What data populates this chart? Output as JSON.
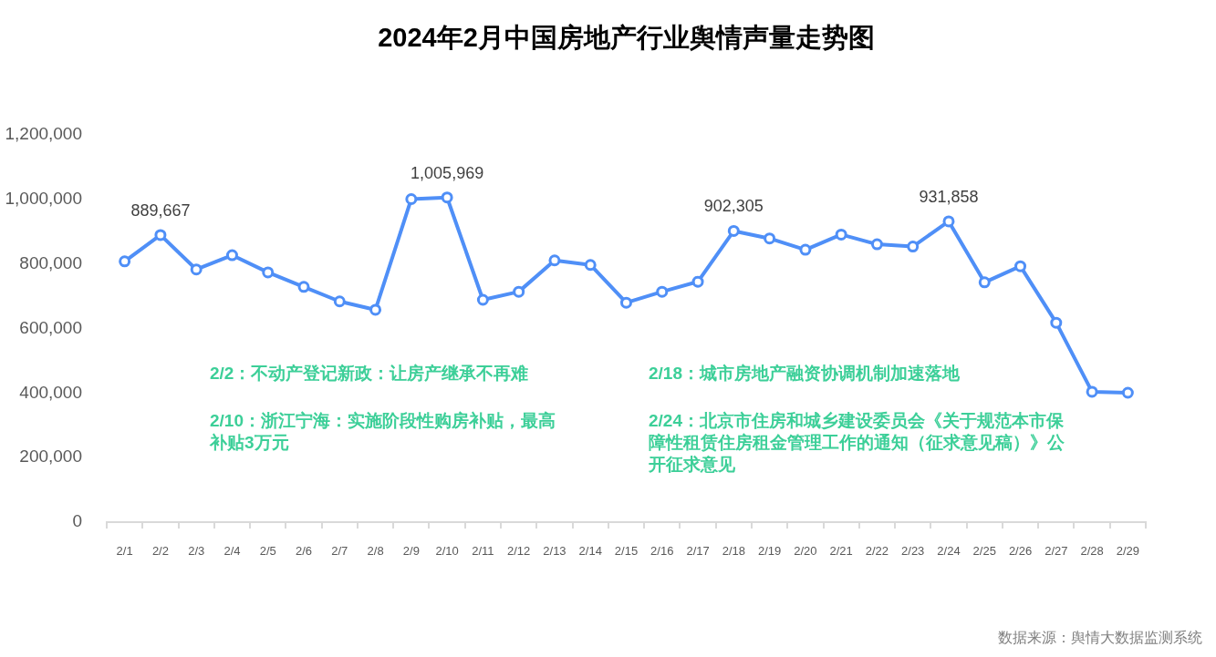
{
  "chart_data": {
    "type": "line",
    "title": "2024年2月中国房地产行业舆情声量走势图",
    "categories": [
      "2/1",
      "2/2",
      "2/3",
      "2/4",
      "2/5",
      "2/6",
      "2/7",
      "2/8",
      "2/9",
      "2/10",
      "2/11",
      "2/12",
      "2/13",
      "2/14",
      "2/15",
      "2/16",
      "2/17",
      "2/18",
      "2/19",
      "2/20",
      "2/21",
      "2/22",
      "2/23",
      "2/24",
      "2/25",
      "2/26",
      "2/27",
      "2/28",
      "2/29"
    ],
    "series": [
      {
        "color": "#4f8ff7",
        "values": [
          808000,
          889667,
          783000,
          827000,
          774000,
          729000,
          684000,
          658000,
          1001000,
          1005969,
          689000,
          714000,
          811000,
          797000,
          680000,
          714000,
          745000,
          902305,
          879000,
          844000,
          891000,
          861000,
          854000,
          931858,
          743000,
          793000,
          618000,
          404000,
          401000
        ],
        "value_labels": [
          null,
          "889,667",
          null,
          null,
          null,
          null,
          null,
          null,
          null,
          "1,005,969",
          null,
          null,
          null,
          null,
          null,
          null,
          null,
          "902,305",
          null,
          null,
          null,
          null,
          null,
          "931,858",
          null,
          null,
          null,
          null,
          null
        ]
      }
    ],
    "ylim": [
      0,
      1200000
    ],
    "yticks": [
      0,
      {
        "value": 200000,
        "label": "200,000"
      },
      {
        "value": 400000,
        "label": "400,000"
      },
      {
        "value": 600000,
        "label": "600,000"
      },
      {
        "value": 800000,
        "label": "800,000"
      },
      {
        "value": 1000000,
        "label": "1,000,000"
      },
      {
        "value": 1200000,
        "label": "1,200,000"
      }
    ],
    "grid": false,
    "legend": false,
    "marker": "circle",
    "line_style": "solid",
    "annotations": [
      "2/2：不动产登记新政：让房产继承不再难",
      "2/10：浙江宁海：实施阶段性购房补贴，最高补贴3万元",
      "2/18：城市房地产融资协调机制加速落地",
      "2/24：北京市住房和城乡建设委员会《关于规范本市保障性租赁住房租金管理工作的通知（征求意见稿）》公开征求意见",
      "数据来源：舆情大数据监测系统"
    ]
  }
}
